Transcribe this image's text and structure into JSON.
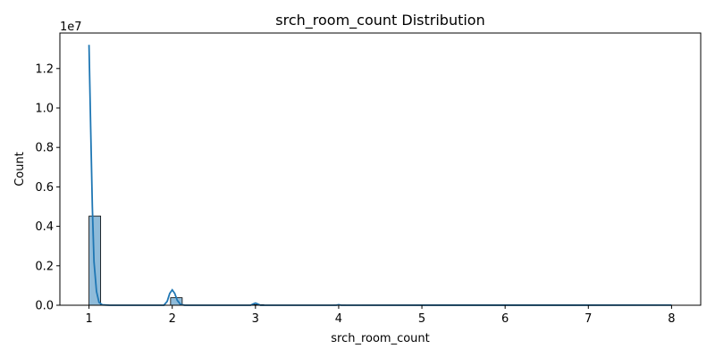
{
  "chart_data": {
    "type": "bar",
    "title": "srch_room_count Distribution",
    "xlabel": "srch_room_count",
    "ylabel": "Count",
    "y_multiplier_label": "1e7",
    "xlim": [
      0.65,
      8.35
    ],
    "ylim": [
      0,
      13800000
    ],
    "x_ticks": [
      1,
      2,
      3,
      4,
      5,
      6,
      7,
      8
    ],
    "y_ticks": [
      0,
      2000000,
      4000000,
      6000000,
      8000000,
      10000000,
      12000000
    ],
    "y_tick_labels": [
      "0.0",
      "0.2",
      "0.4",
      "0.6",
      "0.8",
      "1.0",
      "1.2"
    ],
    "grid": false,
    "histogram": {
      "bin_width": 0.14,
      "bins": [
        {
          "x": 1.0,
          "count": 4520000
        },
        {
          "x": 1.98,
          "count": 380000
        },
        {
          "x": 2.96,
          "count": 30000
        },
        {
          "x": 3.94,
          "count": 8000
        },
        {
          "x": 4.92,
          "count": 4000
        },
        {
          "x": 6.04,
          "count": 2000
        },
        {
          "x": 7.02,
          "count": 1000
        },
        {
          "x": 7.86,
          "count": 1000
        }
      ],
      "fill_color": "#1f77b4",
      "fill_opacity": 0.5,
      "edge_color": "#000000"
    },
    "kde": {
      "color": "#1f77b4",
      "points": [
        [
          1.0,
          13200000
        ],
        [
          1.02,
          9000000
        ],
        [
          1.04,
          5000000
        ],
        [
          1.06,
          2200000
        ],
        [
          1.09,
          700000
        ],
        [
          1.12,
          150000
        ],
        [
          1.16,
          20000
        ],
        [
          1.25,
          0
        ],
        [
          1.9,
          0
        ],
        [
          1.94,
          200000
        ],
        [
          1.97,
          600000
        ],
        [
          2.0,
          780000
        ],
        [
          2.03,
          600000
        ],
        [
          2.06,
          250000
        ],
        [
          2.1,
          40000
        ],
        [
          2.15,
          0
        ],
        [
          2.94,
          0
        ],
        [
          2.97,
          60000
        ],
        [
          3.0,
          110000
        ],
        [
          3.03,
          60000
        ],
        [
          3.06,
          0
        ],
        [
          3.97,
          0
        ],
        [
          4.0,
          25000
        ],
        [
          4.03,
          0
        ],
        [
          8.0,
          5000
        ]
      ]
    }
  }
}
